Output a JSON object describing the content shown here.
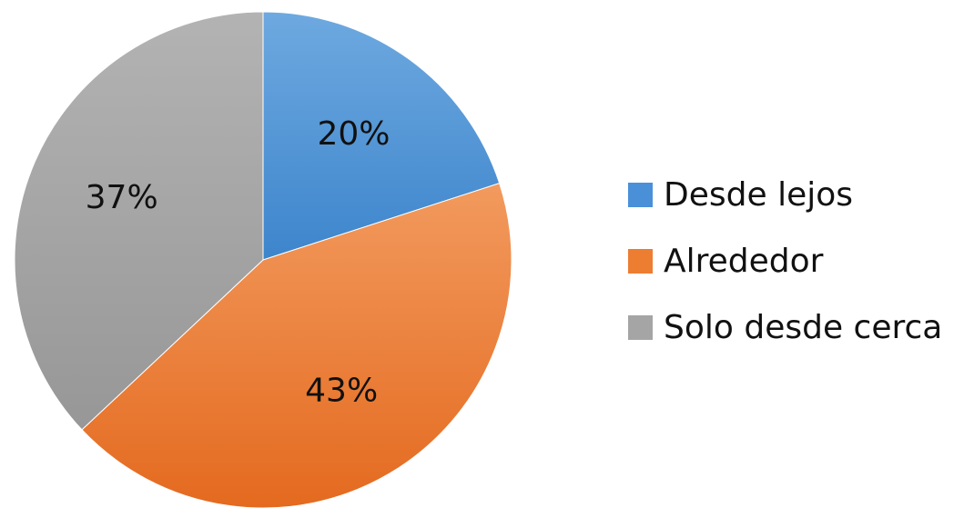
{
  "chart_data": {
    "type": "pie",
    "title": "",
    "categories": [
      "Desde lejos",
      "Alrededor",
      "Solo desde cerca"
    ],
    "values": [
      20,
      43,
      37
    ],
    "labels": [
      "20%",
      "43%",
      "37%"
    ],
    "colors": [
      "#4a90d9",
      "#ed7d31",
      "#a5a5a5"
    ],
    "legend_position": "right"
  }
}
